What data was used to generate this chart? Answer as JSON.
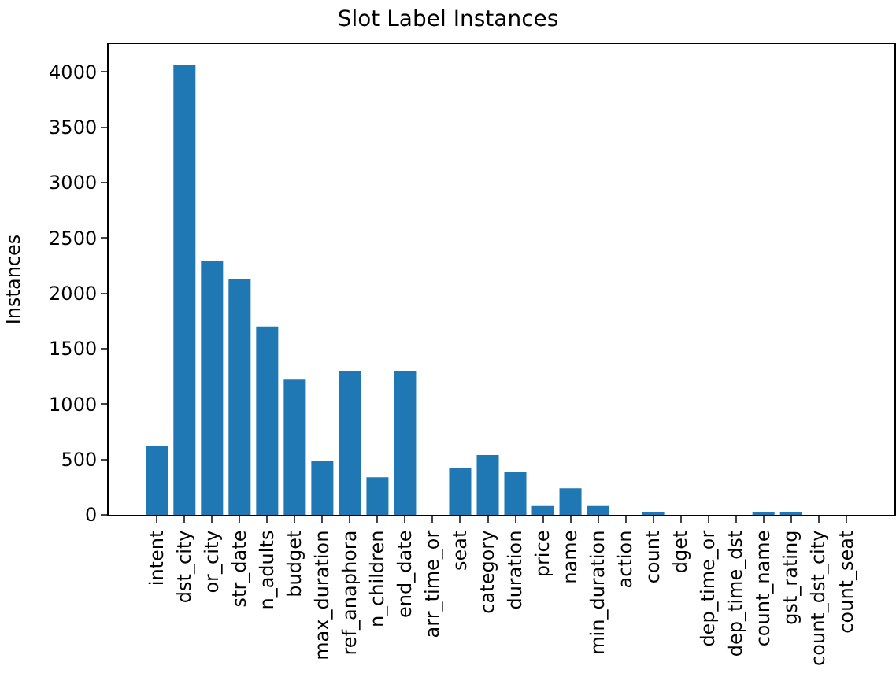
{
  "chart_data": {
    "type": "bar",
    "title": "Slot Label Instances",
    "ylabel": "Instances",
    "categories": [
      "intent",
      "dst_city",
      "or_city",
      "str_date",
      "n_adults",
      "budget",
      "max_duration",
      "ref_anaphora",
      "n_children",
      "end_date",
      "arr_time_or",
      "seat",
      "category",
      "duration",
      "price",
      "name",
      "min_duration",
      "action",
      "count",
      "dget",
      "dep_time_or",
      "dep_time_dst",
      "count_name",
      "gst_rating",
      "count_dst_city",
      "count_seat"
    ],
    "values": [
      620,
      4060,
      2290,
      2130,
      1700,
      1220,
      490,
      1300,
      340,
      1300,
      0,
      420,
      540,
      390,
      80,
      240,
      80,
      0,
      20,
      0,
      0,
      0,
      20,
      20,
      0,
      0
    ],
    "color": "#1f77b4",
    "ylim": [
      0,
      4250
    ],
    "yticks": [
      0,
      500,
      1000,
      1500,
      2000,
      2500,
      3000,
      3500,
      4000
    ]
  }
}
